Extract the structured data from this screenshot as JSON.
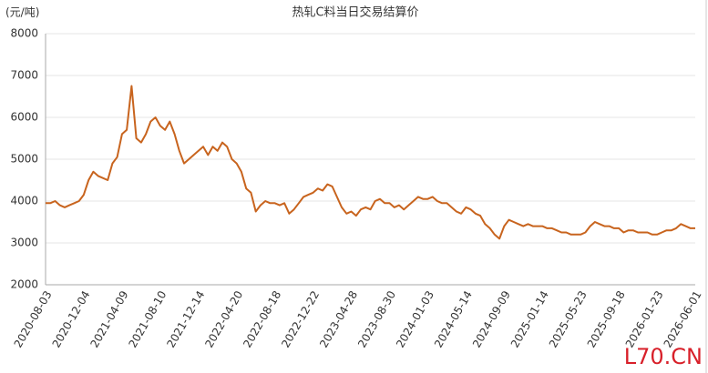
{
  "chart_data": {
    "type": "line",
    "title": "热轧C料当日交易结算价",
    "y_axis_label": "(元/吨)",
    "watermark": "L70.CN",
    "categories": [
      "2020-08-03",
      null,
      null,
      null,
      null,
      null,
      null,
      null,
      "2020-12-04",
      null,
      null,
      null,
      null,
      null,
      null,
      null,
      "2021-04-09",
      null,
      null,
      null,
      null,
      null,
      null,
      null,
      "2021-08-10",
      null,
      null,
      null,
      null,
      null,
      null,
      null,
      "2021-12-14",
      null,
      null,
      null,
      null,
      null,
      null,
      null,
      "2022-04-20",
      null,
      null,
      null,
      null,
      null,
      null,
      null,
      "2022-08-18",
      null,
      null,
      null,
      null,
      null,
      null,
      null,
      "2022-12-22",
      null,
      null,
      null,
      null,
      null,
      null,
      null,
      "2023-04-28",
      null,
      null,
      null,
      null,
      null,
      null,
      null,
      "2023-08-30",
      null,
      null,
      null,
      null,
      null,
      null,
      null,
      "2024-01-03",
      null,
      null,
      null,
      null,
      null,
      null,
      null,
      "2024-05-14",
      null,
      null,
      null,
      null,
      null,
      null,
      null,
      "2024-09-09",
      null,
      null,
      null,
      null,
      null,
      null,
      null,
      "2025-01-14",
      null,
      null,
      null,
      null,
      null,
      null,
      null,
      "2025-05-23",
      null,
      null,
      null,
      null,
      null,
      null,
      null,
      "2025-09-18",
      null,
      null,
      null,
      null,
      null,
      null,
      null,
      "2026-01-23",
      null,
      null,
      null,
      null,
      null,
      null,
      null,
      "2026-06-01"
    ],
    "series": [
      {
        "name": "热轧C料",
        "color": "#c8641e",
        "values": [
          3950,
          3950,
          4000,
          3900,
          3850,
          3900,
          3950,
          4000,
          4150,
          4500,
          4700,
          4600,
          4550,
          4500,
          4900,
          5050,
          5600,
          5700,
          6750,
          5500,
          5400,
          5600,
          5900,
          6000,
          5800,
          5700,
          5900,
          5600,
          5200,
          4900,
          5000,
          5100,
          5200,
          5300,
          5100,
          5300,
          5200,
          5400,
          5300,
          5000,
          4900,
          4700,
          4300,
          4200,
          3750,
          3900,
          4000,
          3950,
          3950,
          3900,
          3950,
          3700,
          3800,
          3950,
          4100,
          4150,
          4200,
          4300,
          4250,
          4400,
          4350,
          4100,
          3850,
          3700,
          3750,
          3650,
          3800,
          3850,
          3800,
          4000,
          4050,
          3950,
          3950,
          3850,
          3900,
          3800,
          3900,
          4000,
          4100,
          4050,
          4050,
          4100,
          4000,
          3950,
          3950,
          3850,
          3750,
          3700,
          3850,
          3800,
          3700,
          3650,
          3450,
          3350,
          3200,
          3100,
          3400,
          3550,
          3500,
          3450,
          3400,
          3450,
          3400,
          3400,
          3400,
          3350,
          3350,
          3300,
          3250,
          3250,
          3200,
          3200,
          3200,
          3250,
          3400,
          3500,
          3450,
          3400,
          3400,
          3350,
          3350,
          3250,
          3300,
          3300,
          3250,
          3250,
          3250,
          3200,
          3200,
          3250,
          3300,
          3300,
          3350,
          3450,
          3400,
          3350,
          3350
        ]
      }
    ],
    "ylim": [
      2000,
      8000
    ],
    "yticks": [
      2000,
      3000,
      4000,
      5000,
      6000,
      7000,
      8000
    ],
    "grid": true
  }
}
